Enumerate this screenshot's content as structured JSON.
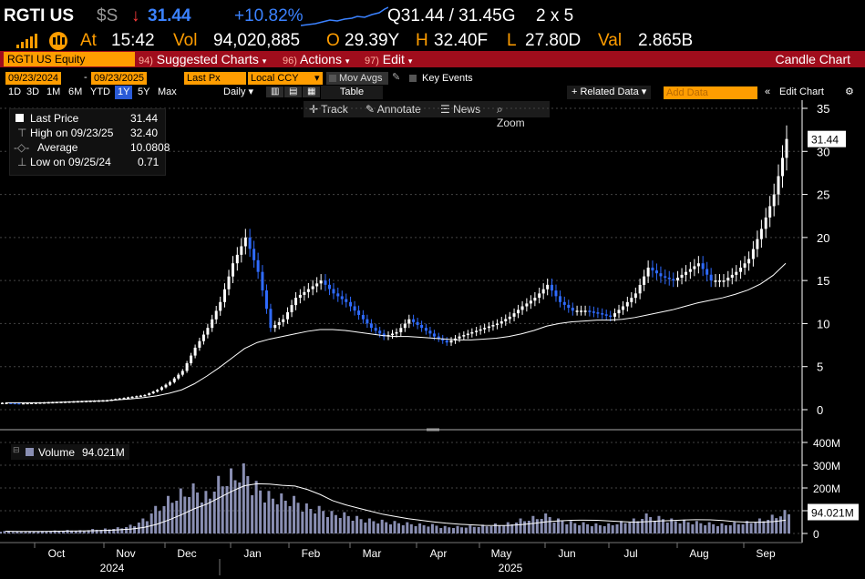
{
  "header": {
    "ticker": "RGTI US",
    "currency_sym": "$S",
    "direction_arrow": "↓",
    "last": "31.44",
    "change_pct": "+10.82%",
    "bid_ask": "Q31.44 / 31.45G",
    "size": "2 x 5",
    "at_label": "At",
    "time": "15:42",
    "vol_label": "Vol",
    "volume": "94,020,885",
    "open_label": "O",
    "open": "29.39Y",
    "high_label": "H",
    "high": "32.40F",
    "low_label": "L",
    "low": "27.80D",
    "val_label": "Val",
    "value": "2.865B"
  },
  "menu_bar": {
    "security": "RGTI US Equity",
    "suggested_num": "94)",
    "suggested": "Suggested Charts",
    "actions_num": "96)",
    "actions": "Actions",
    "edit_num": "97)",
    "edit": "Edit",
    "chart_type": "Candle Chart"
  },
  "settings_bar": {
    "start_date": "09/23/2024",
    "dash": "-",
    "end_date": "09/23/2025",
    "field": "Last Px",
    "currency": "Local CCY",
    "mov_avgs": "Mov Avgs",
    "key_events": "Key Events"
  },
  "period_bar": {
    "periods": [
      "1D",
      "3D",
      "1M",
      "6M",
      "YTD",
      "1Y",
      "5Y",
      "Max"
    ],
    "selected": "1Y",
    "frequency": "Daily",
    "table": "Table",
    "related_data": "+ Related Data",
    "add_data_placeholder": "Add Data",
    "edit_chart": "Edit Chart"
  },
  "chart_toolbar": {
    "track": "Track",
    "annotate": "Annotate",
    "news": "News",
    "zoom": "Zoom"
  },
  "legend": {
    "last_label": "Last Price",
    "last_value": "31.44",
    "high_label": "High on 09/23/25",
    "high_value": "32.40",
    "avg_label": "Average",
    "avg_value": "10.0808",
    "low_label": "Low on 09/25/24",
    "low_value": "0.71"
  },
  "volume_legend": {
    "label": "Volume",
    "value": "94.021M"
  },
  "colors": {
    "up": "#ffffff",
    "down": "#2f6bff",
    "volume": "#8a8fb3",
    "ma": "#ffffff",
    "orange": "#ff9d00",
    "menu_red": "#a00d1c",
    "positive": "#3b82ff"
  },
  "chart_data": [
    {
      "type": "candlestick",
      "series_name": "RGTI US Equity",
      "x_ticks": [
        "Oct",
        "Nov",
        "Dec",
        "Jan",
        "Feb",
        "Mar",
        "Apr",
        "May",
        "Jun",
        "Jul",
        "Aug",
        "Sep"
      ],
      "year_labels": [
        "2024",
        "2025"
      ],
      "y_ticks": [
        0,
        5,
        10,
        15,
        20,
        25,
        30,
        35
      ],
      "ylim": [
        -1,
        35.5
      ],
      "last_label": "31.44",
      "weekly_closes": [
        0.8,
        0.75,
        0.8,
        0.85,
        0.9,
        0.95,
        1.0,
        1.05,
        1.1,
        1.3,
        1.5,
        1.7,
        2.3,
        3.2,
        4.5,
        7.2,
        9.5,
        12.5,
        17.0,
        20.0,
        16.0,
        9.5,
        10.5,
        13.0,
        14.0,
        15.0,
        13.5,
        12.5,
        11.0,
        9.5,
        8.5,
        9.0,
        10.5,
        9.5,
        8.5,
        7.8,
        8.5,
        9.0,
        9.5,
        10.0,
        10.8,
        12.0,
        13.0,
        14.5,
        12.5,
        11.5,
        11.5,
        11.2,
        10.8,
        12.0,
        13.5,
        16.5,
        15.5,
        15.0,
        16.0,
        17.0,
        15.0,
        15.0,
        16.0,
        17.5,
        21.0,
        25.0,
        31.44
      ],
      "ma_values": [
        0.8,
        0.8,
        0.8,
        0.8,
        0.85,
        0.9,
        0.95,
        1.0,
        1.05,
        1.15,
        1.25,
        1.4,
        1.6,
        1.9,
        2.3,
        3.0,
        3.9,
        4.9,
        6.0,
        7.1,
        7.8,
        8.2,
        8.5,
        8.8,
        9.1,
        9.3,
        9.3,
        9.2,
        9.0,
        8.8,
        8.6,
        8.5,
        8.5,
        8.4,
        8.3,
        8.2,
        8.1,
        8.1,
        8.2,
        8.3,
        8.5,
        8.8,
        9.2,
        9.7,
        10.0,
        10.2,
        10.3,
        10.4,
        10.4,
        10.5,
        10.7,
        11.0,
        11.3,
        11.6,
        12.0,
        12.4,
        12.7,
        13.0,
        13.4,
        13.9,
        14.6,
        15.6,
        17.0
      ]
    },
    {
      "type": "bar",
      "series_name": "Volume",
      "y_ticks": [
        "0",
        "100M",
        "200M",
        "300M",
        "400M"
      ],
      "ylim": [
        0,
        420
      ],
      "last_label": "94.021M",
      "weekly_volume_m": [
        10,
        8,
        9,
        10,
        12,
        14,
        13,
        18,
        20,
        25,
        35,
        60,
        110,
        150,
        180,
        200,
        170,
        230,
        260,
        280,
        210,
        170,
        160,
        150,
        120,
        110,
        90,
        85,
        70,
        60,
        55,
        50,
        45,
        40,
        38,
        30,
        30,
        32,
        35,
        40,
        45,
        60,
        70,
        80,
        60,
        50,
        45,
        40,
        40,
        50,
        60,
        80,
        70,
        60,
        55,
        50,
        45,
        40,
        45,
        50,
        60,
        75,
        94
      ]
    }
  ]
}
